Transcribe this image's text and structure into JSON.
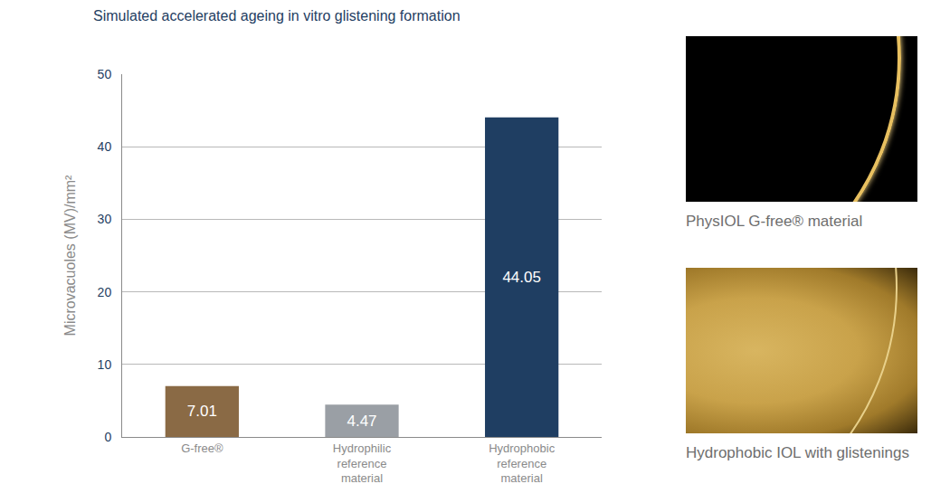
{
  "chart_data": {
    "type": "bar",
    "title": "Simulated accelerated ageing in vitro glistening formation",
    "ylabel": "Microvacuoles (MV)/mm²",
    "categories": [
      "G-free®",
      "Hydrophilic reference material",
      "Hydrophobic reference material"
    ],
    "values": [
      7.01,
      4.47,
      44.05
    ],
    "colors": [
      "#8a6a45",
      "#9a9fa5",
      "#1f3e62"
    ],
    "ylim": [
      0,
      50
    ],
    "yticks": [
      0,
      10,
      20,
      30,
      40,
      50
    ],
    "grid": true,
    "data_labels": true
  },
  "images": [
    {
      "caption": "PhysIOL G-free® material"
    },
    {
      "caption": "Hydrophobic IOL with glistenings"
    }
  ]
}
